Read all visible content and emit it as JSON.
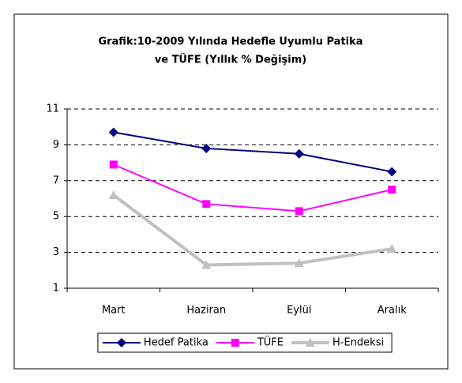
{
  "chart_data": {
    "type": "line",
    "title_lines": [
      "Grafik:10-2009 Yılında Hedefle Uyumlu Patika",
      "ve TÜFE (Yıllık % Değişim)"
    ],
    "categories": [
      "Mart",
      "Haziran",
      "Eylül",
      "Aralık"
    ],
    "series": [
      {
        "name": "Hedef Patika",
        "color": "#000080",
        "marker": "diamond",
        "values": [
          9.7,
          8.8,
          8.5,
          7.5
        ]
      },
      {
        "name": "TÜFE",
        "color": "#ff00ff",
        "marker": "square",
        "values": [
          7.9,
          5.7,
          5.3,
          6.5
        ]
      },
      {
        "name": "H-Endeksi",
        "color": "#c0c0c0",
        "marker": "triangle",
        "values": [
          6.2,
          2.3,
          2.4,
          3.2
        ]
      }
    ],
    "ylim": [
      1,
      11
    ],
    "yticks": [
      1,
      3,
      5,
      7,
      9,
      11
    ],
    "grid": true,
    "legend": "bottom"
  }
}
